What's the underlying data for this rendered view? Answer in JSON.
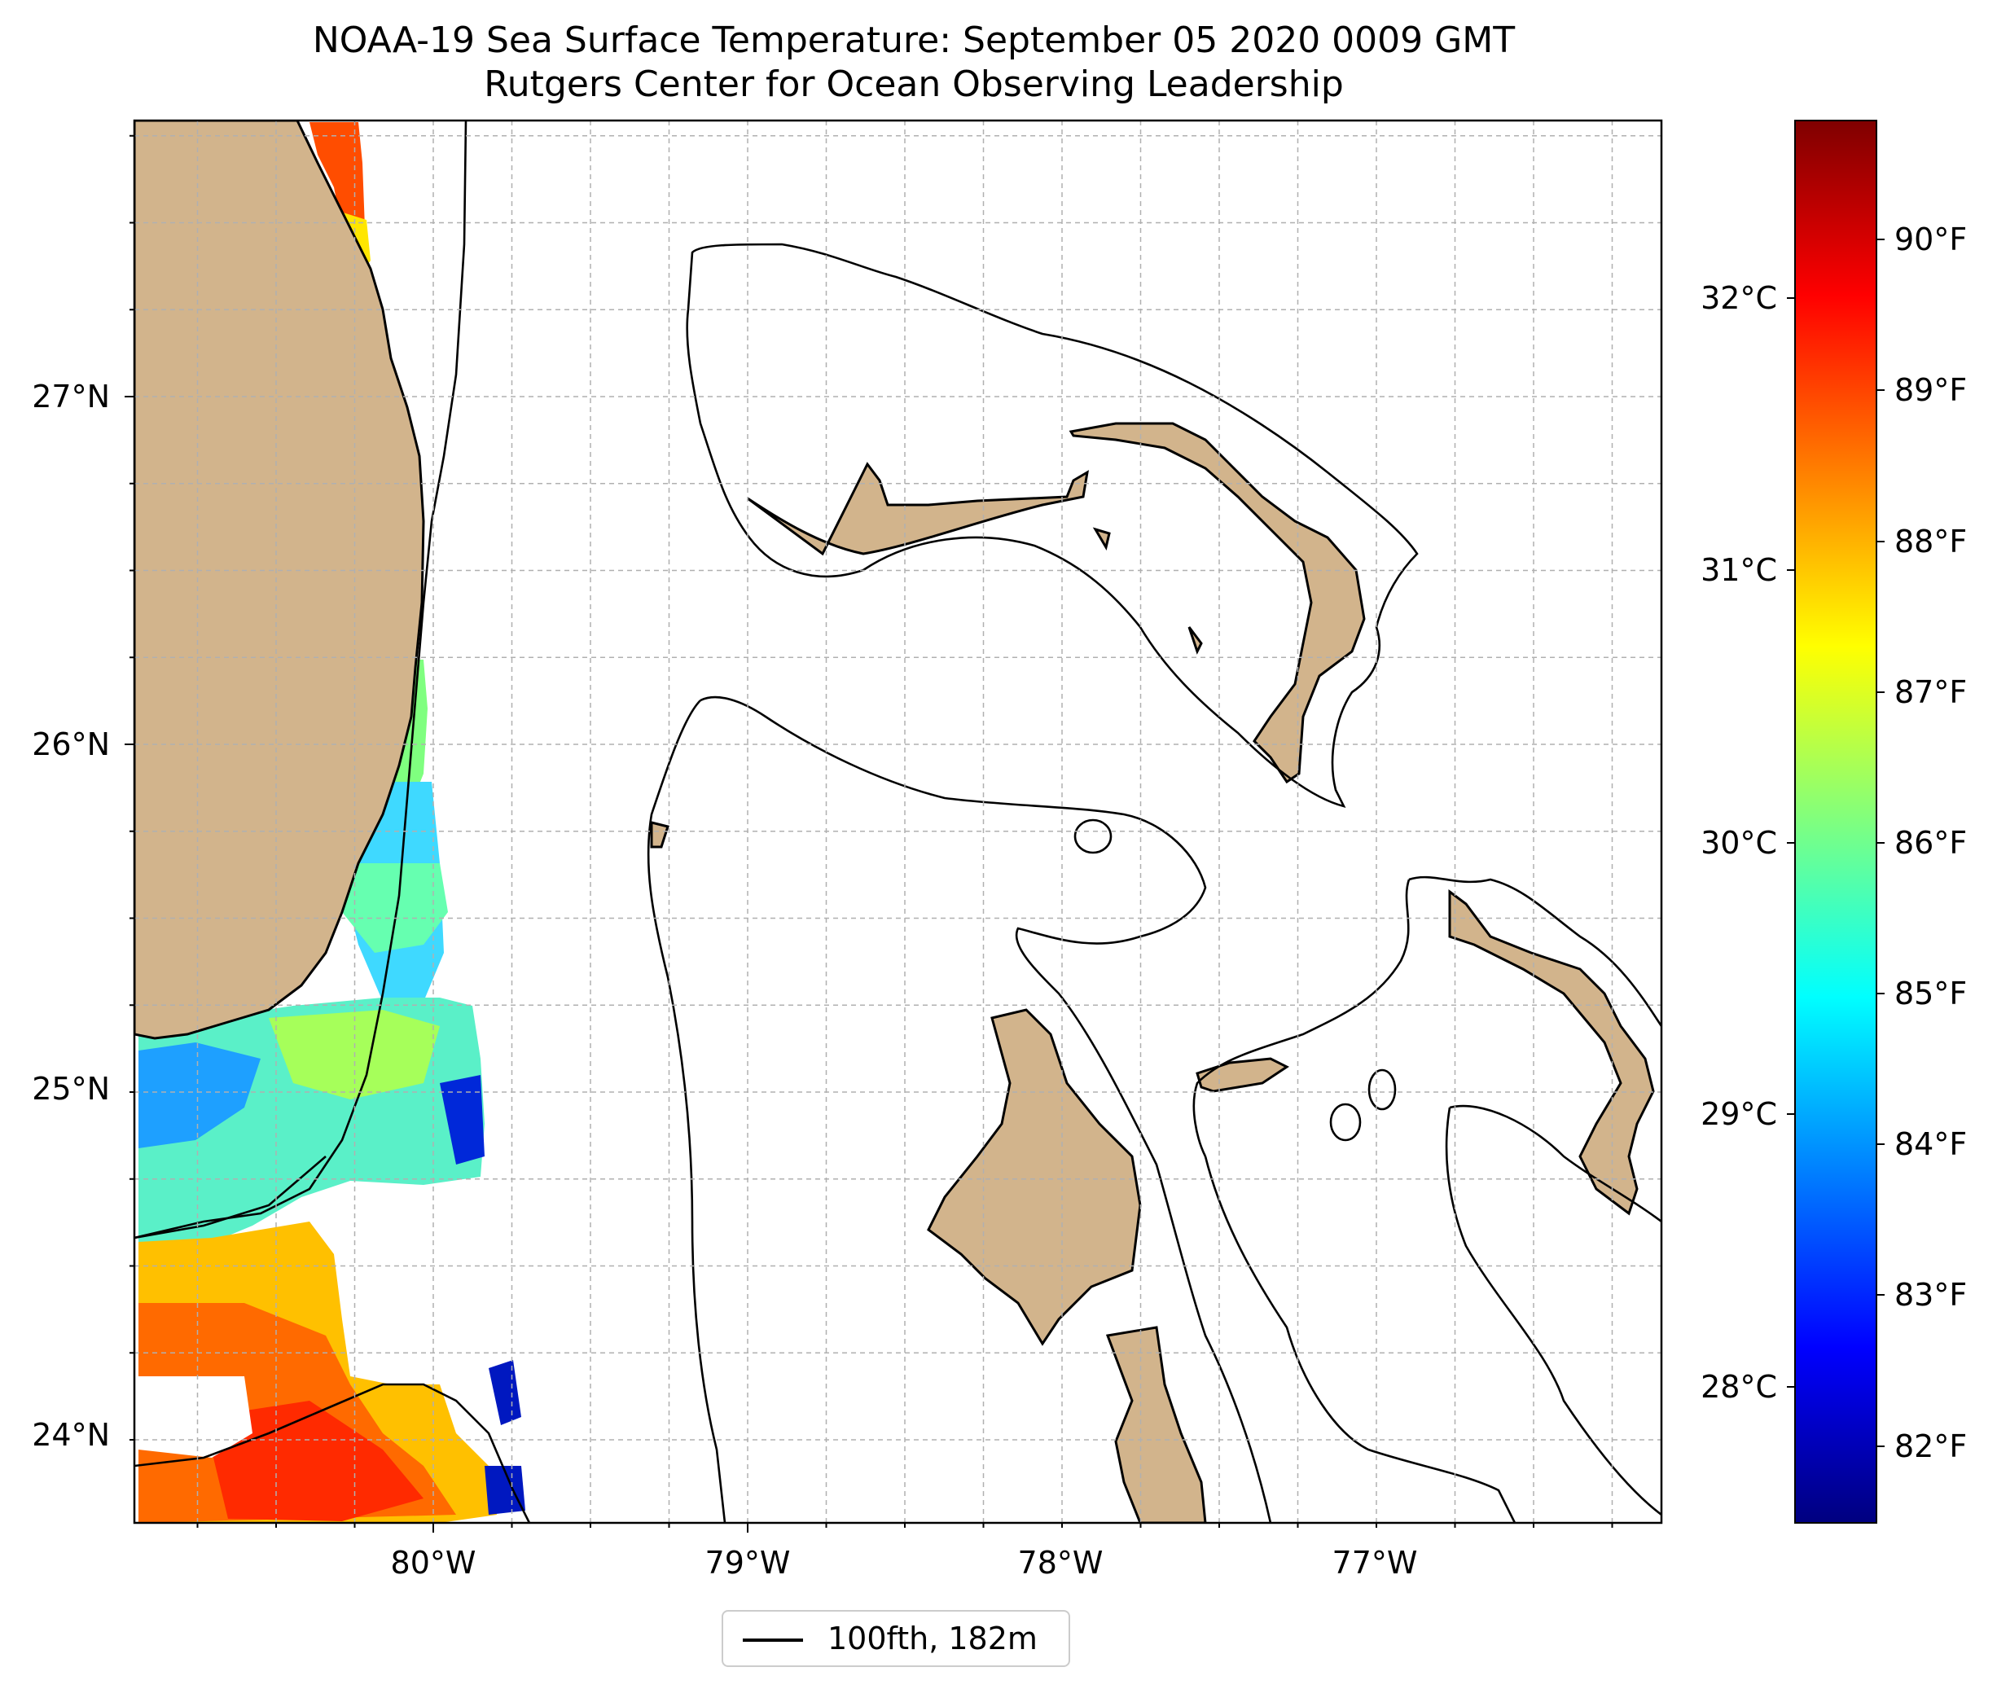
{
  "title": "NOAA-19 Sea Surface Temperature: September 05 2020 0009 GMT",
  "subtitle": "Rutgers Center for Ocean Observing Leadership",
  "axes": {
    "lon_ticks": [
      "80°W",
      "79°W",
      "78°W",
      "77°W"
    ],
    "lat_ticks": [
      "27°N",
      "26°N",
      "25°N",
      "24°N"
    ],
    "grid": true
  },
  "colorbar": {
    "colormap": "jet",
    "celsius_ticks": [
      "32°C",
      "31°C",
      "30°C",
      "29°C",
      "28°C"
    ],
    "fahrenheit_ticks": [
      "90°F",
      "89°F",
      "88°F",
      "87°F",
      "86°F",
      "85°F",
      "84°F",
      "83°F",
      "82°F"
    ],
    "range_f": [
      81.4,
      90.8
    ],
    "colors": [
      "#00007f",
      "#0000ff",
      "#007fff",
      "#00ffff",
      "#7fff7f",
      "#ffff00",
      "#ff7f00",
      "#ff0000",
      "#7f0000"
    ]
  },
  "legend": {
    "label": "100fth, 182m"
  },
  "colors": {
    "land": "#d2b48c",
    "ocean": "#ffffff",
    "grid": "#b0b0b0",
    "contour": "#000000",
    "sst_mask": "#8fa7d4"
  }
}
